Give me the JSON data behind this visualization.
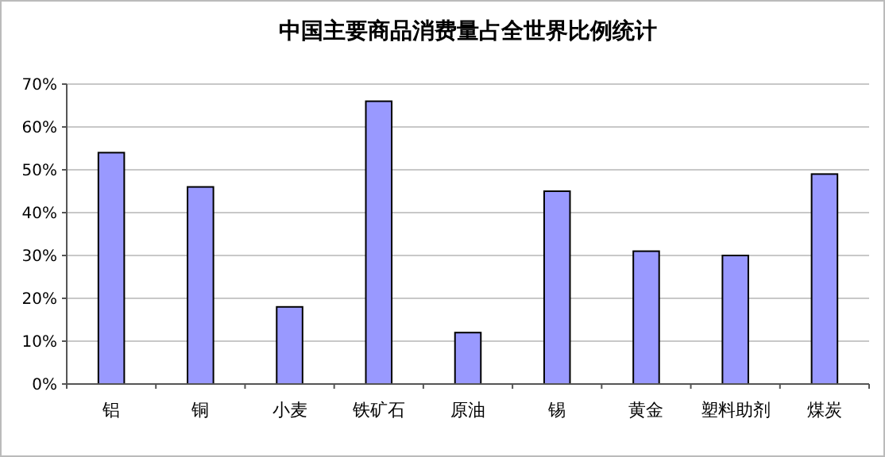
{
  "chart_data": {
    "type": "bar",
    "title": "中国主要商品消费量占全世界比例统计",
    "categories": [
      "铝",
      "铜",
      "小麦",
      "铁矿石",
      "原油",
      "锡",
      "黄金",
      "塑料助剂",
      "煤炭"
    ],
    "values": [
      54,
      46,
      18,
      66,
      12,
      45,
      31,
      30,
      49
    ],
    "color": "#9999ff",
    "ylim": [
      0,
      70
    ],
    "yticks": [
      {
        "value": 0,
        "label": "0%"
      },
      {
        "value": 10,
        "label": "10%"
      },
      {
        "value": 20,
        "label": "20%"
      },
      {
        "value": 30,
        "label": "30%"
      },
      {
        "value": 40,
        "label": "40%"
      },
      {
        "value": 50,
        "label": "50%"
      },
      {
        "value": 60,
        "label": "60%"
      },
      {
        "value": 70,
        "label": "70%"
      }
    ],
    "grid": "y"
  }
}
